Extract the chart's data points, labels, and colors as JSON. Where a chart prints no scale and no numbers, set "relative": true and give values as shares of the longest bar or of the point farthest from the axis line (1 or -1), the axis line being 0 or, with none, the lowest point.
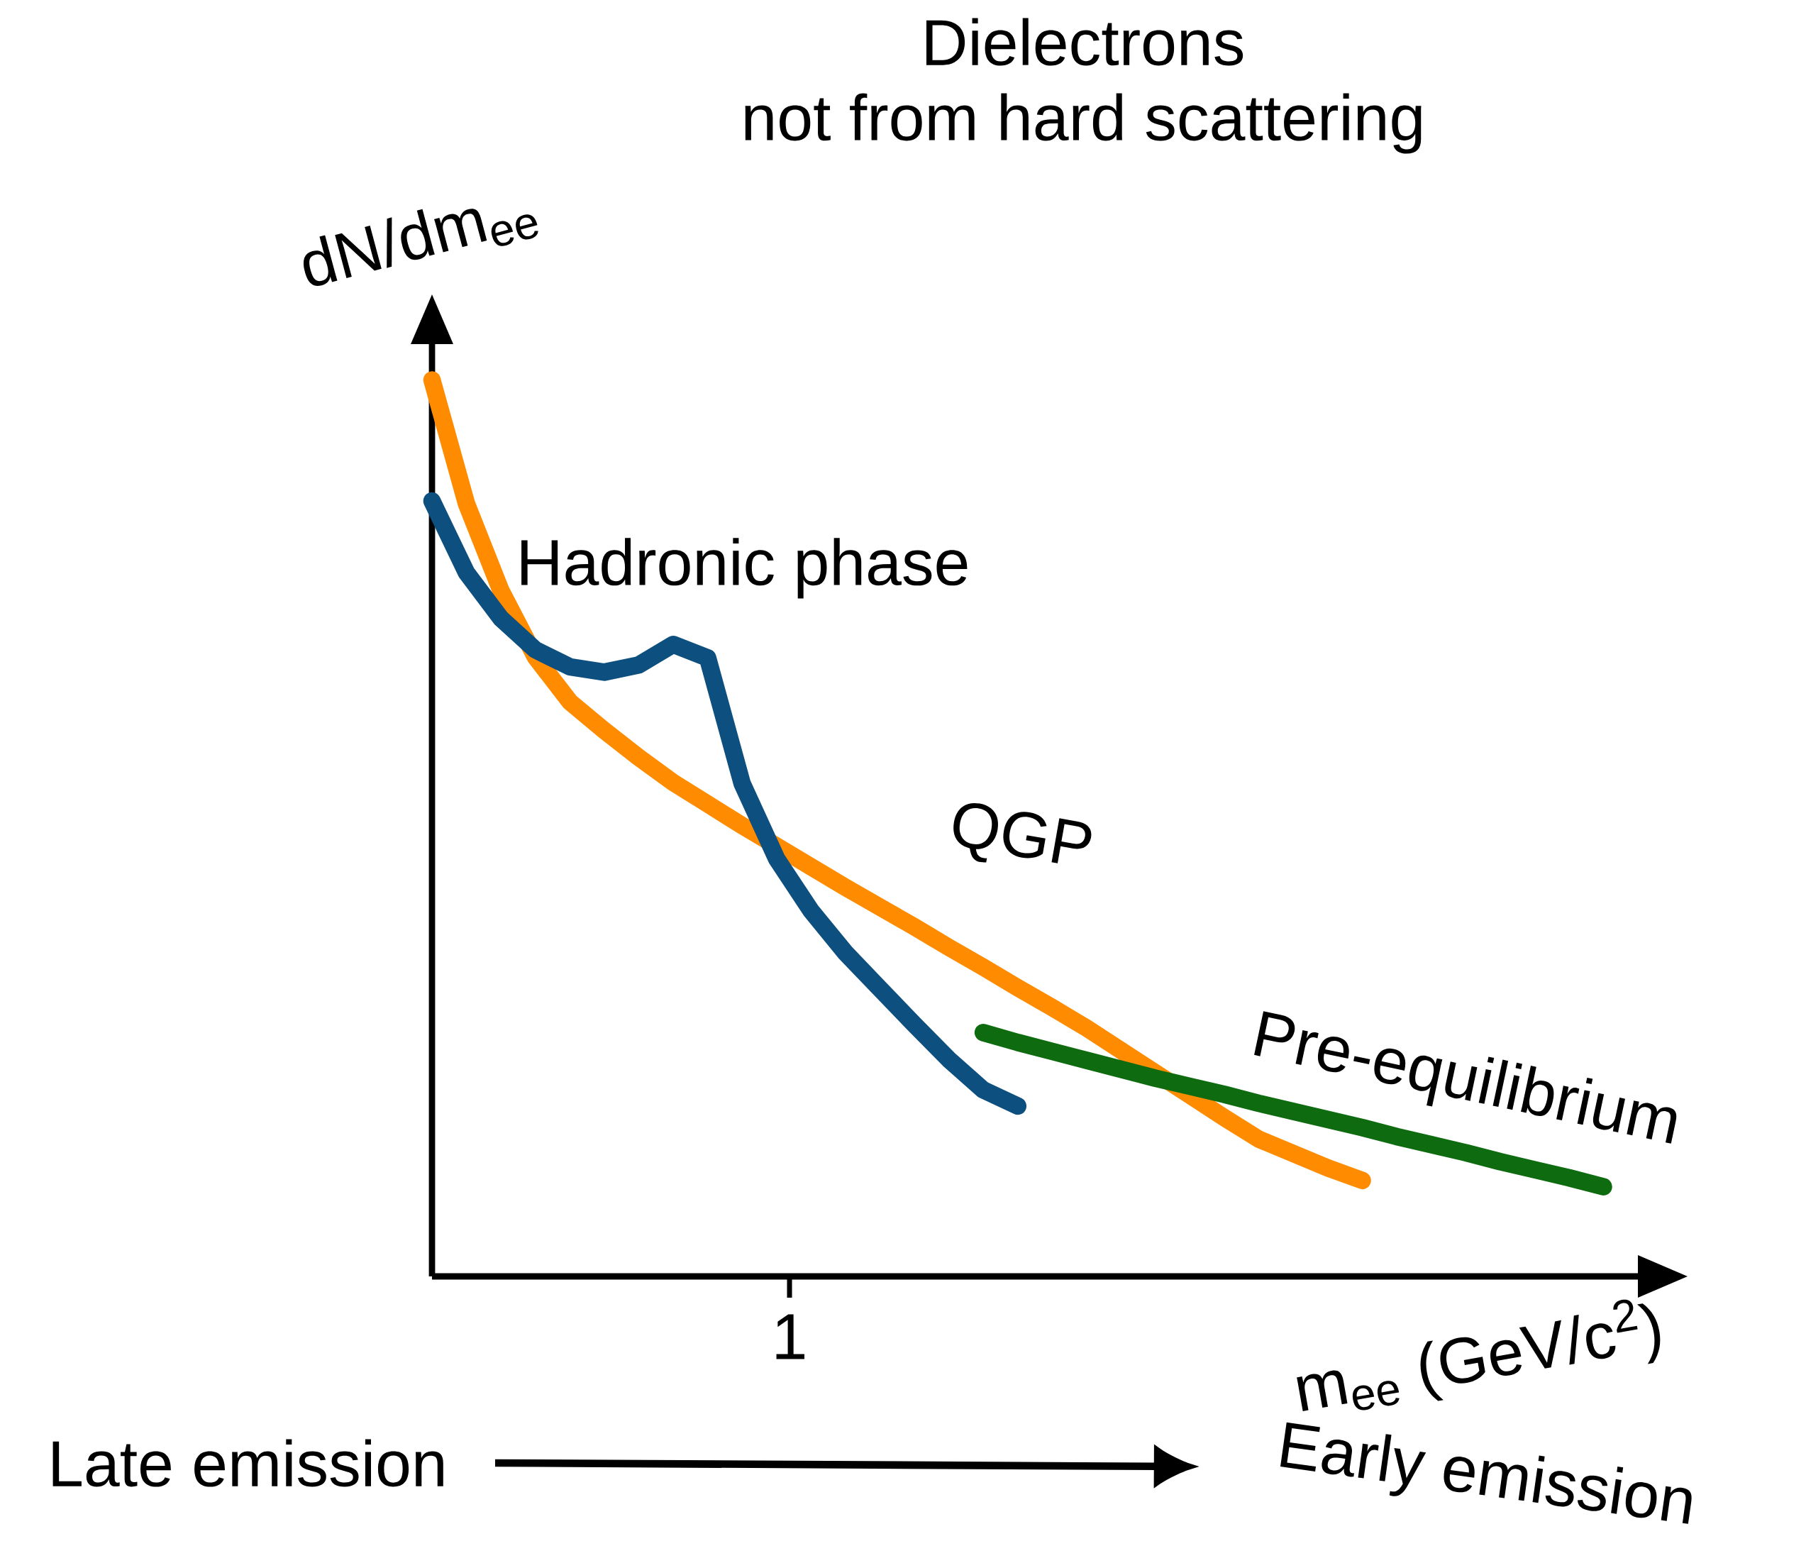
{
  "chart_data": {
    "type": "line",
    "title": "Dielectrons",
    "subtitle": "not from hard scattering",
    "xlabel": "m$_{ee}$ (GeV/c$^{2}$)",
    "ylabel": "dN/dm$_{ee}$",
    "relative": true,
    "categories": [
      null,
      null,
      null,
      null,
      null,
      null,
      null,
      null,
      null,
      null,
      null,
      null,
      null,
      null,
      null,
      null,
      null,
      null,
      null,
      null,
      null,
      null,
      null,
      null,
      null,
      null,
      null,
      null,
      null,
      null,
      null,
      null,
      null,
      null,
      null
    ],
    "series": [
      {
        "name": "QGP",
        "color": "#ff8c00",
        "values": [
          1.0,
          0.862,
          0.765,
          0.691,
          0.641,
          0.609,
          0.579,
          0.551,
          0.527,
          0.503,
          0.48,
          0.457,
          0.434,
          0.412,
          0.39,
          0.367,
          0.345,
          0.322,
          0.3,
          0.277,
          0.252,
          0.227,
          0.202,
          0.177,
          0.153,
          0.137,
          0.121,
          0.107,
          null,
          null,
          null,
          null,
          null,
          null,
          null
        ]
      },
      {
        "name": "Hadronic phase",
        "color": "#0d4f7f",
        "values": [
          0.865,
          0.785,
          0.734,
          0.699,
          0.68,
          0.674,
          0.682,
          0.705,
          0.69,
          0.55,
          0.466,
          0.408,
          0.361,
          0.321,
          0.281,
          0.242,
          0.208,
          0.19,
          null,
          null,
          null,
          null,
          null,
          null,
          null,
          null,
          null,
          null,
          null,
          null,
          null,
          null,
          null,
          null,
          null
        ]
      },
      {
        "name": "Pre-equilibrium",
        "color": "#0f6b0f",
        "values": [
          null,
          null,
          null,
          null,
          null,
          null,
          null,
          null,
          null,
          null,
          null,
          null,
          null,
          null,
          null,
          null,
          0.272,
          0.261,
          0.251,
          0.241,
          0.231,
          0.221,
          0.212,
          0.203,
          0.193,
          0.184,
          0.175,
          0.166,
          0.156,
          0.147,
          0.138,
          0.128,
          0.119,
          0.11,
          0.1
        ]
      }
    ],
    "annotations": [
      "Late emission",
      "Early emission",
      "1"
    ]
  }
}
